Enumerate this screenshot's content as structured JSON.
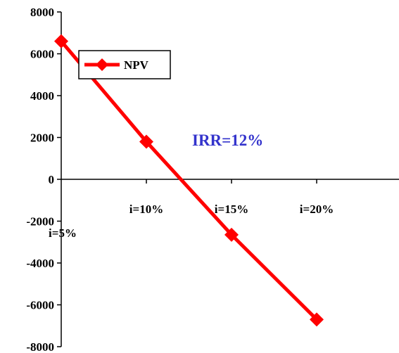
{
  "chart_data": {
    "type": "line",
    "categories": [
      "i=5%",
      "i=10%",
      "i=15%",
      "i=20%"
    ],
    "series": [
      {
        "name": "NPV",
        "values": [
          6600,
          1800,
          -2650,
          -6700
        ],
        "color": "#ff0000"
      }
    ],
    "ylim": [
      -8000,
      8000
    ],
    "yticks": [
      8000,
      6000,
      4000,
      2000,
      0,
      -2000,
      -4000,
      -6000,
      -8000
    ],
    "annotation": {
      "text": "IRR=12%",
      "color": "#3333cc"
    },
    "grid": false,
    "legend": "top-left"
  }
}
